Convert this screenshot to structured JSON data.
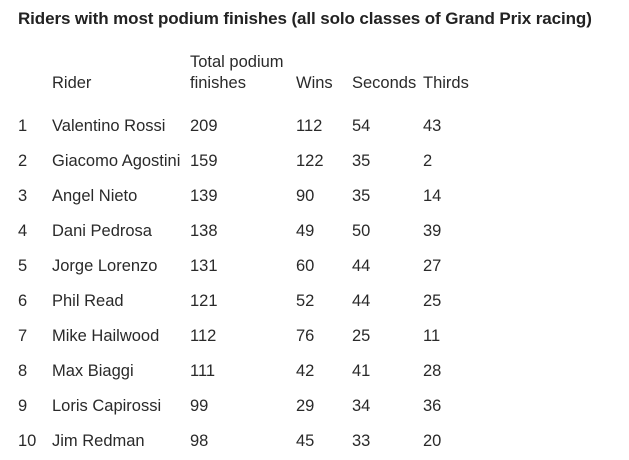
{
  "caption": "Riders with most podium finishes (all solo classes of Grand Prix racing)",
  "columns": {
    "rank": "",
    "rider": "Rider",
    "total": "Total podium finishes",
    "wins": "Wins",
    "seconds": "Seconds",
    "thirds": "Thirds"
  },
  "rows": [
    {
      "rank": "1",
      "rider": "Valentino Rossi",
      "total": "209",
      "wins": "112",
      "seconds": "54",
      "thirds": "43"
    },
    {
      "rank": "2",
      "rider": "Giacomo Agostini",
      "total": "159",
      "wins": "122",
      "seconds": "35",
      "thirds": "2"
    },
    {
      "rank": "3",
      "rider": "Angel Nieto",
      "total": "139",
      "wins": "90",
      "seconds": "35",
      "thirds": "14"
    },
    {
      "rank": "4",
      "rider": "Dani Pedrosa",
      "total": "138",
      "wins": "49",
      "seconds": "50",
      "thirds": "39"
    },
    {
      "rank": "5",
      "rider": "Jorge Lorenzo",
      "total": "131",
      "wins": "60",
      "seconds": "44",
      "thirds": "27"
    },
    {
      "rank": "6",
      "rider": "Phil Read",
      "total": "121",
      "wins": "52",
      "seconds": "44",
      "thirds": "25"
    },
    {
      "rank": "7",
      "rider": "Mike Hailwood",
      "total": "112",
      "wins": "76",
      "seconds": "25",
      "thirds": "11"
    },
    {
      "rank": "8",
      "rider": "Max Biaggi",
      "total": "111",
      "wins": "42",
      "seconds": "41",
      "thirds": "28"
    },
    {
      "rank": "9",
      "rider": "Loris Capirossi",
      "total": "99",
      "wins": "29",
      "seconds": "34",
      "thirds": "36"
    },
    {
      "rank": "10",
      "rider": "Jim Redman",
      "total": "98",
      "wins": "45",
      "seconds": "33",
      "thirds": "20"
    }
  ]
}
